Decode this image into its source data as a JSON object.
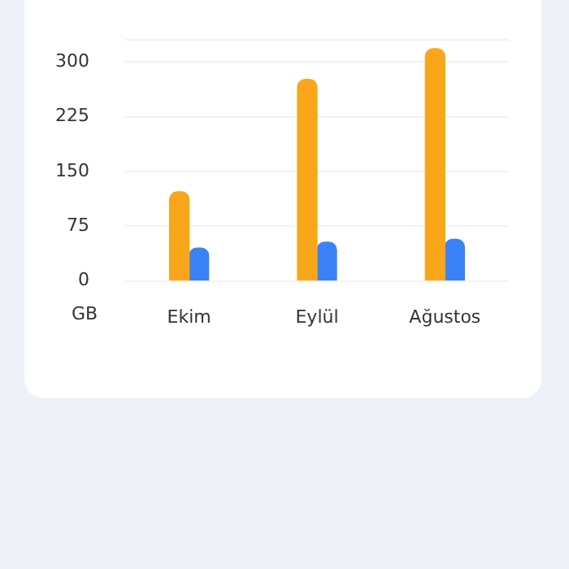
{
  "chart_data": {
    "type": "bar",
    "ylabel": "GB",
    "categories": [
      "Ekim",
      "Eylül",
      "Ağustos"
    ],
    "series": [
      {
        "color": "#f9a61a",
        "values": [
          122,
          276,
          318
        ]
      },
      {
        "color": "#3b82f6",
        "values": [
          45,
          53,
          57
        ]
      }
    ],
    "ylim": [
      0,
      330
    ],
    "yticks": [
      0,
      75,
      150,
      225,
      300,
      {
        "value": 330,
        "label": null
      }
    ],
    "grid": "y",
    "legend": false
  }
}
